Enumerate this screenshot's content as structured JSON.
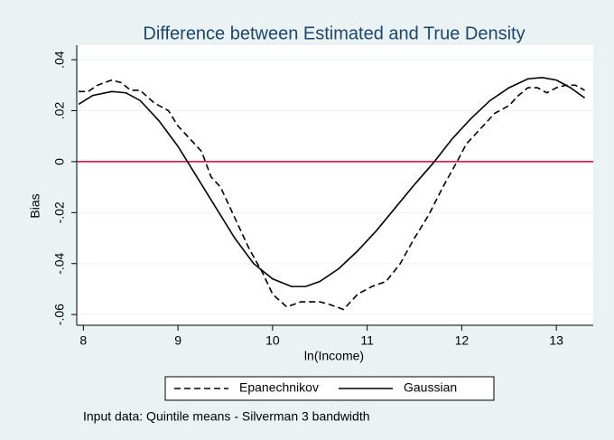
{
  "chart_data": {
    "type": "line",
    "title": "Difference between Estimated and True Density",
    "x_label": "ln(Income)",
    "y_label": "Bias",
    "note": "Input data: Quintile means - Silverman 3 bandwidth",
    "xlim": [
      7.93,
      13.39
    ],
    "xticks": [
      8,
      9,
      10,
      11,
      12,
      13
    ],
    "ylim": [
      -0.0642,
      0.0457
    ],
    "yticks": [
      {
        "value": -0.06,
        "label": "-.06"
      },
      {
        "value": -0.04,
        "label": "-.04"
      },
      {
        "value": -0.02,
        "label": "-.02"
      },
      0,
      {
        "value": 0.02,
        "label": ".02"
      },
      {
        "value": 0.04,
        "label": ".04"
      }
    ],
    "grid": true,
    "yline": 0,
    "yline_color": "#d6003c",
    "legend": "bottom",
    "series": [
      {
        "name": "Epanechnikov",
        "color": "#000000",
        "dash": true,
        "x": [
          7.95,
          8.05,
          8.15,
          8.3,
          8.4,
          8.5,
          8.6,
          8.75,
          8.9,
          9.0,
          9.1,
          9.25,
          9.35,
          9.45,
          9.6,
          9.75,
          9.9,
          10.0,
          10.15,
          10.3,
          10.5,
          10.6,
          10.75,
          10.9,
          11.05,
          11.2,
          11.35,
          11.5,
          11.65,
          11.8,
          11.95,
          12.05,
          12.2,
          12.35,
          12.5,
          12.6,
          12.7,
          12.8,
          12.9,
          13.0,
          13.1,
          13.2,
          13.3
        ],
        "values": [
          0.0275,
          0.0275,
          0.03,
          0.032,
          0.031,
          0.028,
          0.028,
          0.023,
          0.02,
          0.014,
          0.01,
          0.004,
          -0.006,
          -0.01,
          -0.022,
          -0.034,
          -0.044,
          -0.052,
          -0.057,
          -0.055,
          -0.055,
          -0.056,
          -0.058,
          -0.052,
          -0.049,
          -0.047,
          -0.04,
          -0.03,
          -0.021,
          -0.01,
          0.0,
          0.007,
          0.013,
          0.019,
          0.022,
          0.026,
          0.029,
          0.029,
          0.027,
          0.029,
          0.03,
          0.03,
          0.028
        ]
      },
      {
        "name": "Gaussian",
        "color": "#000000",
        "dash": false,
        "x": [
          7.95,
          8.1,
          8.3,
          8.45,
          8.6,
          8.8,
          9.0,
          9.2,
          9.4,
          9.6,
          9.8,
          10.0,
          10.2,
          10.35,
          10.5,
          10.7,
          10.9,
          11.1,
          11.3,
          11.5,
          11.7,
          11.9,
          12.1,
          12.3,
          12.5,
          12.7,
          12.85,
          13.0,
          13.15,
          13.3
        ],
        "values": [
          0.0225,
          0.026,
          0.0275,
          0.027,
          0.024,
          0.016,
          0.006,
          -0.006,
          -0.018,
          -0.03,
          -0.04,
          -0.046,
          -0.049,
          -0.049,
          -0.047,
          -0.042,
          -0.035,
          -0.027,
          -0.018,
          -0.009,
          -0.0005,
          0.009,
          0.017,
          0.024,
          0.029,
          0.0325,
          0.033,
          0.032,
          0.029,
          0.025
        ]
      }
    ]
  }
}
